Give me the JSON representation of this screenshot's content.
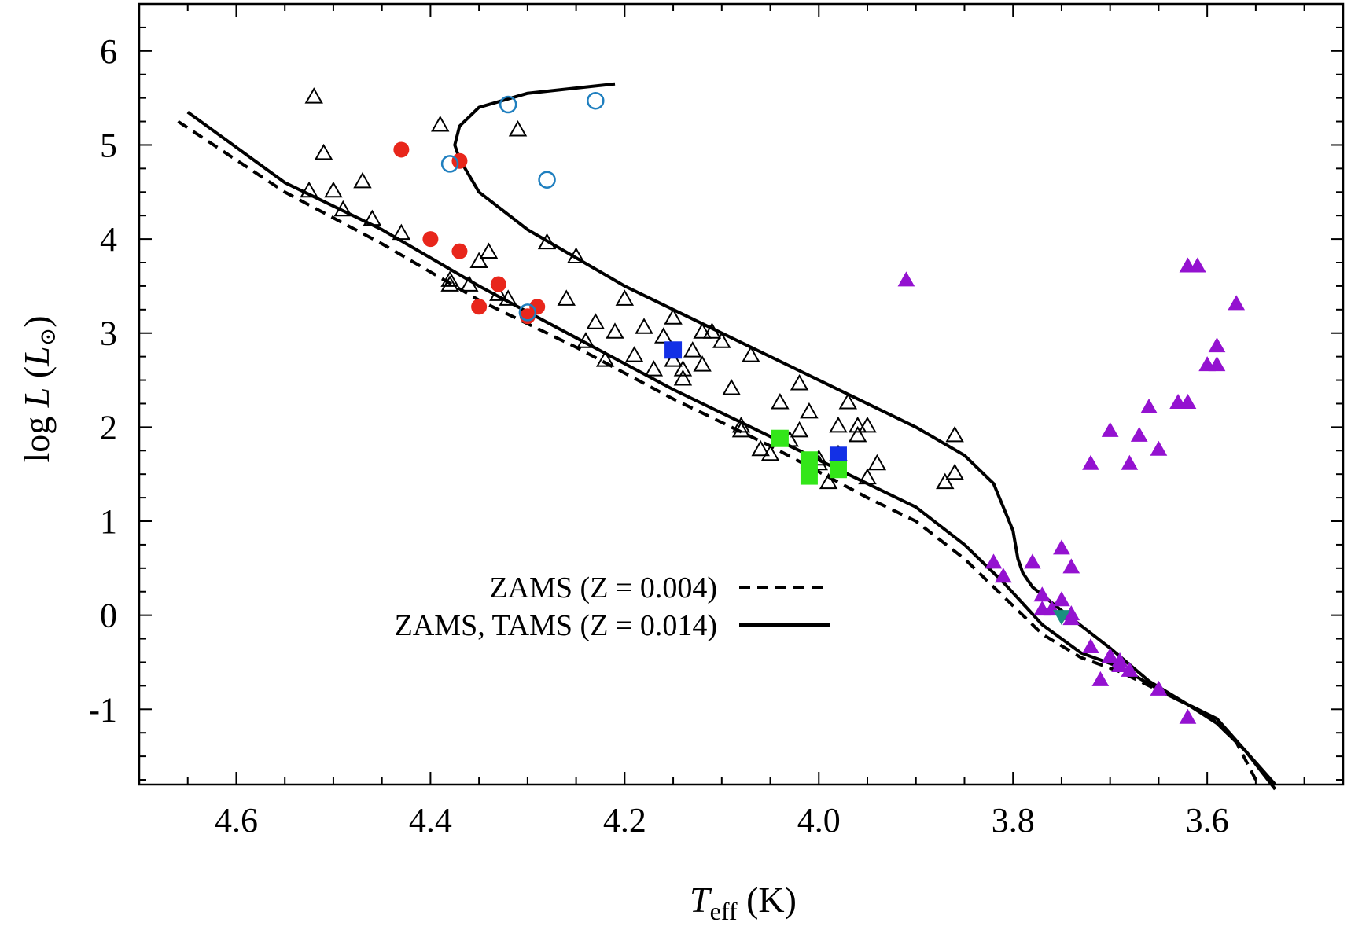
{
  "chart_data": {
    "type": "scatter",
    "xlabel": {
      "main": "T",
      "sub": "eff",
      "unit": " (K)"
    },
    "ylabel": {
      "main": "log ",
      "var": "L",
      "unit_open": "  (",
      "unit_var": "L",
      "unit_sym": "⊙",
      "unit_close": ")"
    },
    "xlim": [
      4.7,
      3.46
    ],
    "ylim": [
      -1.8,
      6.5
    ],
    "x_ticks": [
      4.6,
      4.4,
      4.2,
      4.0,
      3.8,
      3.6
    ],
    "x_tick_labels": [
      "4.6",
      "4.4",
      "4.2",
      "4.0",
      "3.8",
      "3.6"
    ],
    "y_ticks": [
      6,
      5,
      4,
      3,
      2,
      1,
      0,
      -1
    ],
    "y_tick_labels": [
      "6",
      "5",
      "4",
      "3",
      "2",
      "1",
      "0",
      "-1"
    ],
    "grid": false,
    "legend": [
      {
        "label": "ZAMS (Z = 0.004)",
        "style": "dashed"
      },
      {
        "label": "ZAMS, TAMS (Z = 0.014)",
        "style": "solid"
      }
    ],
    "lines": [
      {
        "name": "ZAMS (Z = 0.004)",
        "style": "dashed",
        "color": "#000000",
        "x": [
          4.66,
          4.55,
          4.45,
          4.35,
          4.25,
          4.15,
          4.05,
          3.95,
          3.9,
          3.85,
          3.81,
          3.77,
          3.73,
          3.69,
          3.64,
          3.6,
          3.57,
          3.55
        ],
        "y": [
          5.25,
          4.5,
          3.95,
          3.35,
          2.85,
          2.3,
          1.8,
          1.25,
          1.0,
          0.6,
          0.2,
          -0.2,
          -0.45,
          -0.6,
          -0.85,
          -1.05,
          -1.35,
          -1.75
        ]
      },
      {
        "name": "ZAMS (Z = 0.014)",
        "style": "solid",
        "color": "#000000",
        "x": [
          4.65,
          4.55,
          4.45,
          4.35,
          4.25,
          4.15,
          4.05,
          3.95,
          3.9,
          3.85,
          3.81,
          3.77,
          3.73,
          3.69,
          3.64,
          3.59,
          3.56,
          3.53
        ],
        "y": [
          5.35,
          4.6,
          4.1,
          3.5,
          2.95,
          2.4,
          1.9,
          1.4,
          1.15,
          0.75,
          0.35,
          -0.1,
          -0.4,
          -0.55,
          -0.85,
          -1.1,
          -1.45,
          -1.85
        ]
      },
      {
        "name": "TAMS (Z = 0.014)",
        "style": "solid",
        "color": "#000000",
        "x": [
          4.21,
          4.3,
          4.35,
          4.37,
          4.375,
          4.37,
          4.35,
          4.3,
          4.2,
          4.1,
          4.0,
          3.9,
          3.85,
          3.82,
          3.8,
          3.795,
          3.79,
          3.78,
          3.75,
          3.7,
          3.66,
          3.62,
          3.59,
          3.56,
          3.53
        ],
        "y": [
          5.65,
          5.55,
          5.4,
          5.2,
          5.0,
          4.85,
          4.5,
          4.1,
          3.5,
          3.0,
          2.5,
          2.0,
          1.7,
          1.4,
          0.9,
          0.6,
          0.45,
          0.3,
          0.05,
          -0.35,
          -0.7,
          -0.95,
          -1.15,
          -1.45,
          -1.8
        ]
      }
    ],
    "series": [
      {
        "name": "open-triangles",
        "marker": "triangle-open",
        "color": "#000000",
        "x": [
          4.52,
          4.51,
          4.5,
          4.49,
          4.47,
          4.46,
          4.43,
          4.39,
          4.38,
          4.35,
          4.34,
          4.33,
          4.32,
          4.31,
          4.28,
          4.26,
          4.25,
          4.24,
          4.23,
          4.22,
          4.21,
          4.2,
          4.19,
          4.18,
          4.17,
          4.16,
          4.15,
          4.14,
          4.13,
          4.12,
          4.11,
          4.1,
          4.09,
          4.08,
          4.07,
          4.06,
          4.05,
          4.04,
          4.03,
          4.02,
          4.01,
          4.0,
          3.99,
          3.98,
          3.97,
          3.96,
          3.95,
          3.94,
          3.87,
          3.86,
          4.525,
          4.38,
          4.36,
          4.15,
          4.14,
          4.12,
          4.08,
          4.02,
          4.0,
          3.98,
          3.96,
          3.95,
          3.86
        ],
        "y": [
          5.5,
          4.9,
          4.5,
          4.3,
          4.6,
          4.2,
          4.05,
          5.2,
          3.55,
          3.75,
          3.85,
          3.4,
          3.35,
          5.15,
          3.95,
          3.35,
          3.8,
          2.9,
          3.1,
          2.7,
          3.0,
          3.35,
          2.75,
          3.05,
          2.6,
          2.95,
          2.7,
          2.5,
          2.8,
          2.65,
          3.0,
          2.9,
          2.4,
          2.0,
          2.75,
          1.75,
          1.7,
          2.25,
          1.85,
          2.45,
          2.15,
          1.65,
          1.4,
          2.0,
          2.25,
          1.9,
          2.0,
          1.6,
          1.4,
          1.5,
          4.5,
          3.5,
          3.5,
          3.15,
          2.6,
          3.0,
          1.95,
          1.95,
          1.6,
          1.7,
          2.0,
          1.45,
          1.9
        ]
      },
      {
        "name": "red-filled-circles",
        "marker": "circle-filled",
        "color": "#e8261b",
        "x": [
          4.43,
          4.37,
          4.4,
          4.37,
          4.33,
          4.35,
          4.3,
          4.29
        ],
        "y": [
          4.95,
          4.83,
          4.0,
          3.87,
          3.52,
          3.28,
          3.18,
          3.28
        ]
      },
      {
        "name": "blue-open-circles",
        "marker": "circle-open",
        "color": "#1f7fbf",
        "x": [
          4.32,
          4.23,
          4.38,
          4.28,
          4.3
        ],
        "y": [
          5.43,
          5.47,
          4.8,
          4.63,
          3.22
        ]
      },
      {
        "name": "blue-filled-squares",
        "marker": "square-filled",
        "color": "#1330e6",
        "x": [
          4.15,
          3.98
        ],
        "y": [
          2.82,
          1.7
        ]
      },
      {
        "name": "green-filled-squares",
        "marker": "square-filled",
        "color": "#33e619",
        "x": [
          4.04,
          4.01,
          4.01,
          3.98
        ],
        "y": [
          1.88,
          1.65,
          1.48,
          1.55
        ]
      },
      {
        "name": "purple-filled-triangles",
        "marker": "triangle-filled",
        "color": "#9412d0",
        "x": [
          3.91,
          3.82,
          3.81,
          3.78,
          3.77,
          3.76,
          3.75,
          3.74,
          3.74,
          3.72,
          3.71,
          3.7,
          3.69,
          3.68,
          3.65,
          3.62,
          3.72,
          3.7,
          3.68,
          3.66,
          3.67,
          3.65,
          3.63,
          3.62,
          3.6,
          3.59,
          3.59,
          3.57,
          3.61,
          3.62,
          3.77,
          3.75,
          3.74,
          3.69
        ],
        "y": [
          3.55,
          0.55,
          0.4,
          0.55,
          0.2,
          0.05,
          0.7,
          0.5,
          0.0,
          -0.35,
          -0.7,
          -0.45,
          -0.5,
          -0.6,
          -0.8,
          -1.1,
          1.6,
          1.95,
          1.6,
          2.2,
          1.9,
          1.75,
          2.25,
          2.25,
          2.65,
          2.85,
          2.65,
          3.3,
          3.7,
          3.7,
          0.05,
          0.15,
          -0.05,
          -0.55
        ]
      },
      {
        "name": "teal-filled-down-triangles",
        "marker": "triangle-down-filled",
        "color": "#1a9080",
        "x": [
          3.75
        ],
        "y": [
          0.0
        ]
      }
    ]
  }
}
